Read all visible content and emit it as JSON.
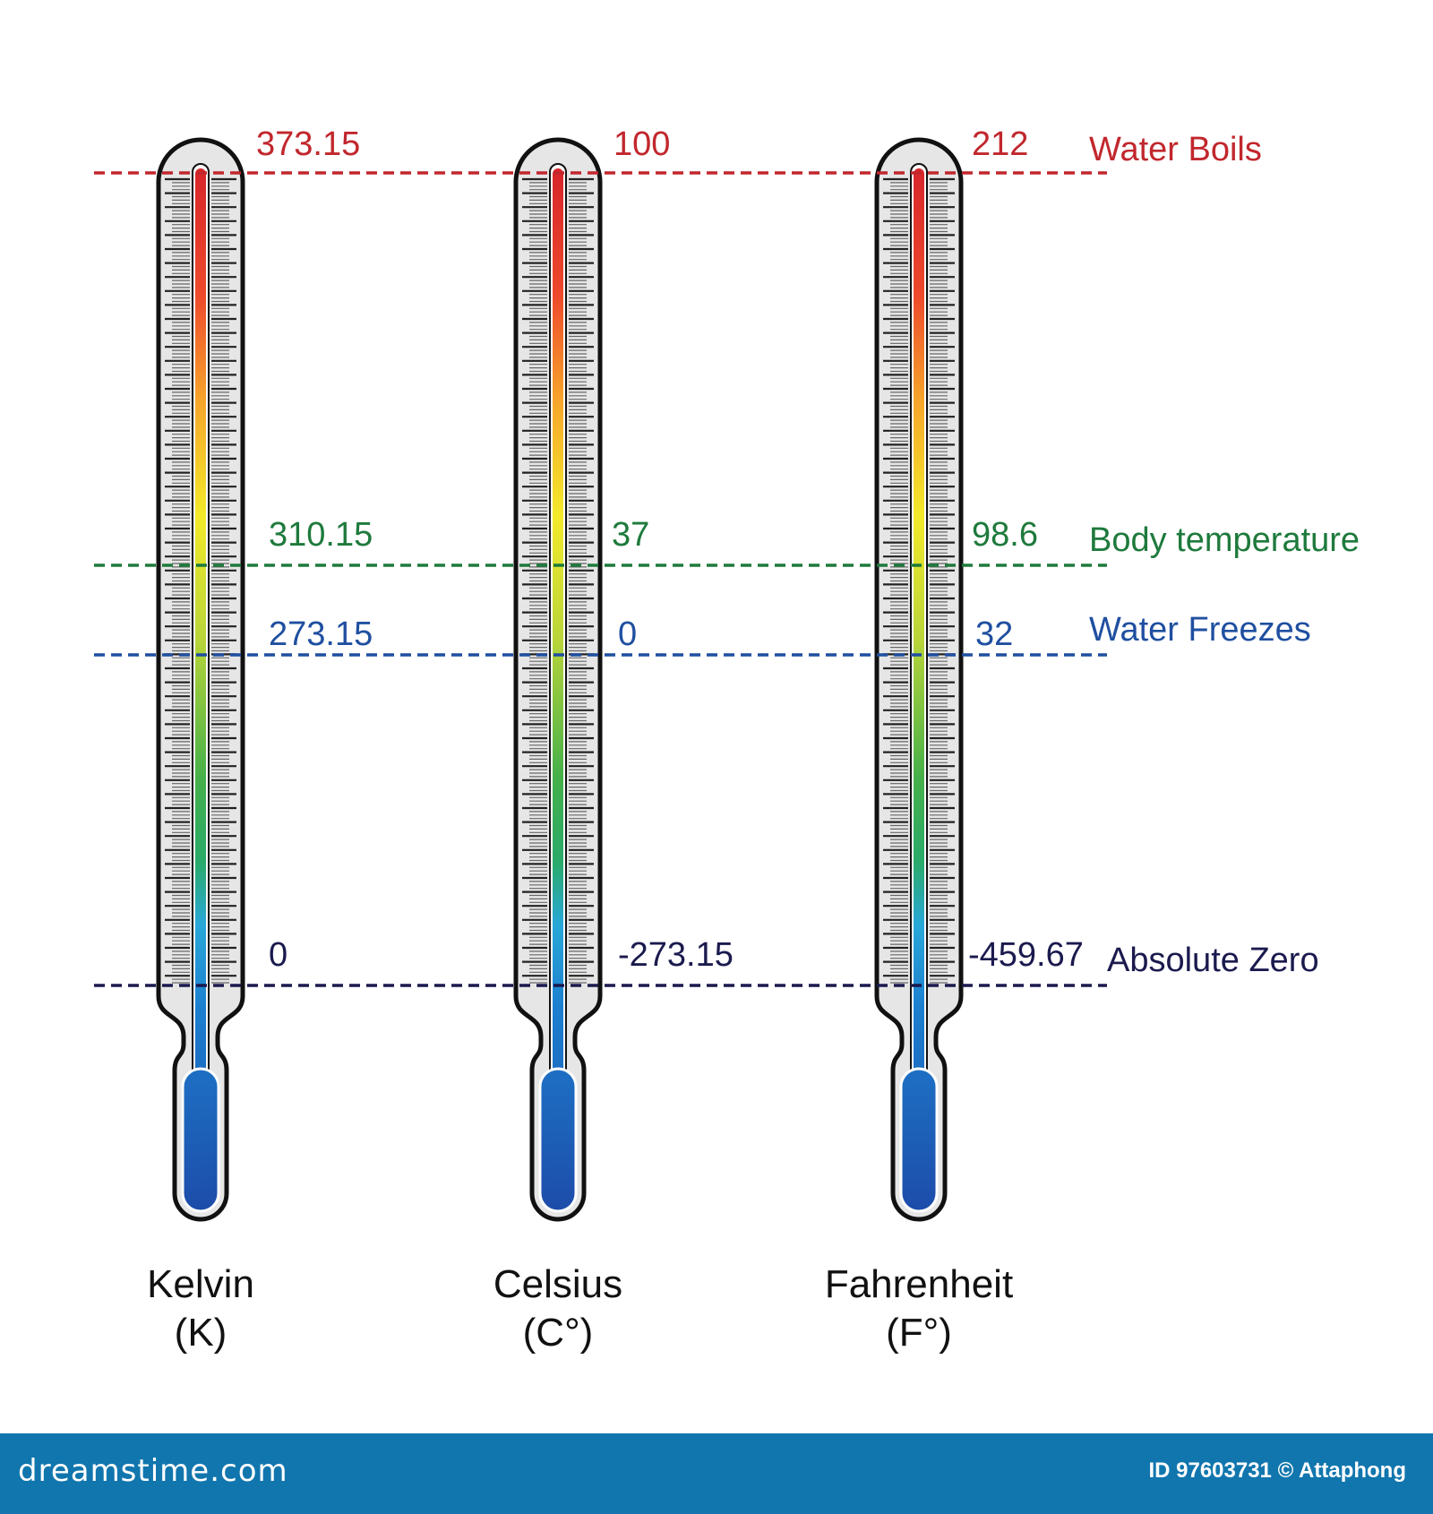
{
  "colors": {
    "boils": "#c1272d",
    "body": "#1e7a3c",
    "freezes": "#1f4fa0",
    "zero": "#1b1a4e",
    "footer": "#1176ae"
  },
  "reference_lines": {
    "boils": "Water Boils",
    "body": "Body temperature",
    "freezes": "Water Freezes",
    "zero": "Absolute Zero"
  },
  "scales": [
    {
      "name": "Kelvin",
      "unit": "(K)",
      "boils": "373.15",
      "body": "310.15",
      "freezes": "273.15",
      "zero": "0"
    },
    {
      "name": "Celsius",
      "unit": "(C°)",
      "boils": "100",
      "body": "37",
      "freezes": "0",
      "zero": "-273.15"
    },
    {
      "name": "Fahrenheit",
      "unit": "(F°)",
      "boils": "212",
      "body": "98.6",
      "freezes": "32",
      "zero": "-459.67"
    }
  ],
  "footer": {
    "logo": "dreamstime.com",
    "credit": "ID 97603731 © Attaphong"
  }
}
